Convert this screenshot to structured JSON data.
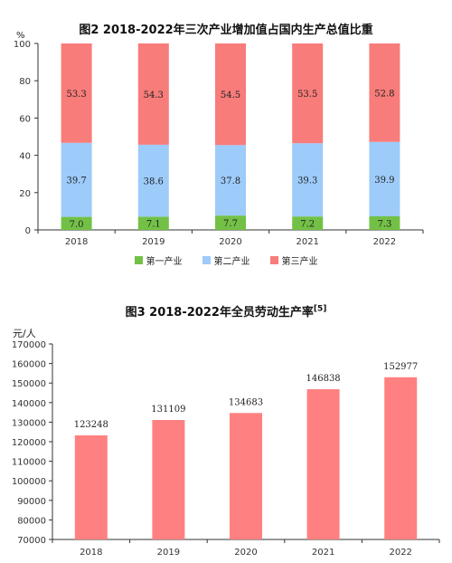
{
  "chart1": {
    "title": "图2 2018-2022年三次产业增加值占国内生产总值比重",
    "unit": "%",
    "colors": {
      "primary": "#72C146",
      "secondary": "#9DCBFA",
      "tertiary": "#F77C7A"
    },
    "legend": [
      "第一产业",
      "第二产业",
      "第三产业"
    ]
  },
  "chart2": {
    "title": "图3 2018-2022年全员劳动生产率",
    "title_sup": "[5]",
    "unit": "元/人",
    "bar_color": "#FF8080"
  },
  "chart_data": [
    {
      "type": "bar",
      "stacked": true,
      "title": "图2 2018-2022年三次产业增加值占国内生产总值比重",
      "ylabel": "%",
      "categories": [
        "2018",
        "2019",
        "2020",
        "2021",
        "2022"
      ],
      "series": [
        {
          "name": "第一产业",
          "values": [
            7.0,
            7.1,
            7.7,
            7.2,
            7.3
          ]
        },
        {
          "name": "第二产业",
          "values": [
            39.7,
            38.6,
            37.8,
            39.3,
            39.9
          ]
        },
        {
          "name": "第三产业",
          "values": [
            53.3,
            54.3,
            54.5,
            53.5,
            52.8
          ]
        }
      ],
      "ylim": [
        0,
        100
      ],
      "yticks": [
        0,
        20,
        40,
        60,
        80,
        100
      ],
      "grid": false,
      "legend_position": "bottom"
    },
    {
      "type": "bar",
      "title": "图3 2018-2022年全员劳动生产率",
      "ylabel": "元/人",
      "categories": [
        "2018",
        "2019",
        "2020",
        "2021",
        "2022"
      ],
      "values": [
        123248,
        131109,
        134683,
        146838,
        152977
      ],
      "ylim": [
        70000,
        170000
      ],
      "yticks": [
        70000,
        80000,
        90000,
        100000,
        110000,
        120000,
        130000,
        140000,
        150000,
        160000,
        170000
      ],
      "grid": false
    }
  ]
}
